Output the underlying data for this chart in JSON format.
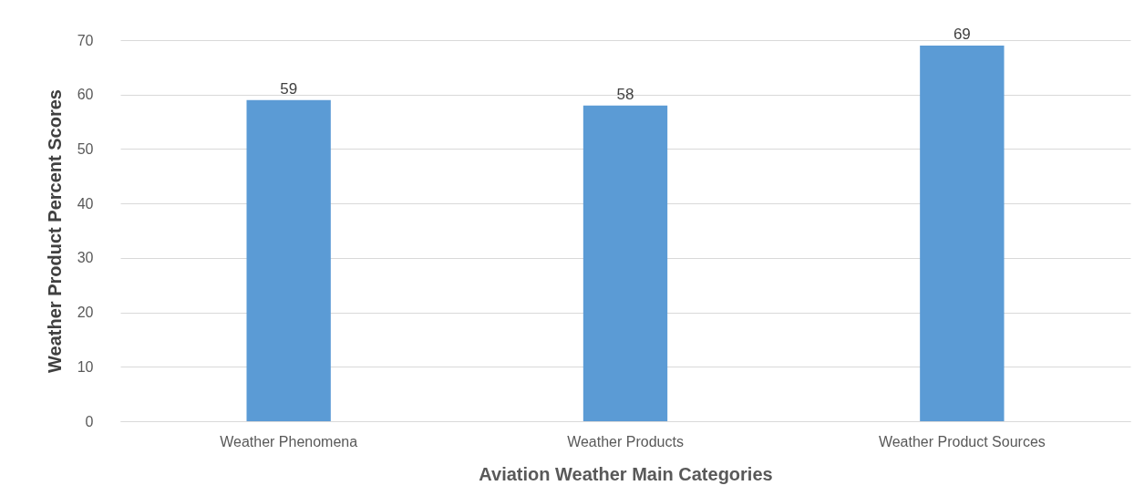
{
  "chart_data": {
    "type": "bar",
    "xlabel": "Aviation Weather Main Categories",
    "ylabel": "Weather Product  Percent Scores",
    "categories": [
      "Weather Phenomena",
      "Weather Products",
      "Weather Product Sources"
    ],
    "values": [
      59,
      58,
      69
    ],
    "color": "#5b9bd5",
    "ylim": [
      0,
      70
    ],
    "yticks": [
      0,
      10,
      20,
      30,
      40,
      50,
      60,
      70
    ],
    "grid": "y",
    "data_labels": true
  }
}
